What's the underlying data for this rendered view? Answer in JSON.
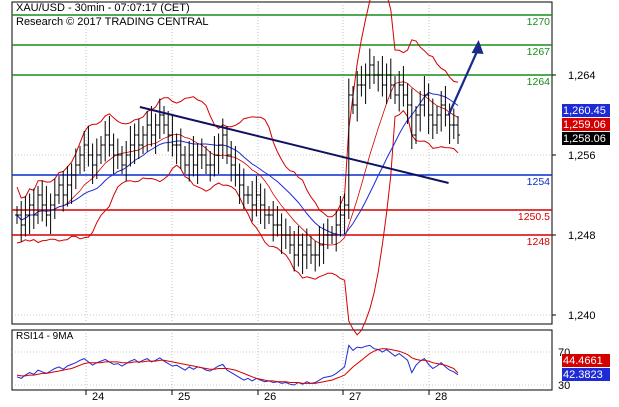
{
  "header": {
    "line1": "XAU/USD - 30min - 07:07:17 (CET)",
    "line2": "Research © 2017 TRADING CENTRAL"
  },
  "chart_data": [
    {
      "type": "candlestick",
      "symbol": "XAU/USD",
      "timeframe": "30min",
      "x_ticks": [
        "24",
        "25",
        "26",
        "27",
        "28"
      ],
      "y_ticks": [
        1240,
        1248,
        1256,
        1264
      ],
      "ylim": [
        1236,
        1276
      ],
      "grid": true,
      "colors": {
        "price": "#000000",
        "bollinger": "#d40000",
        "moving_average": "#1d2bd6",
        "support": "#d40000",
        "resistance": "#1a8c1a",
        "pivot": "#0a2ecc",
        "trendline": "#101060",
        "arrow": "#1a2a8a"
      },
      "levels": [
        {
          "label": "1270",
          "value": 1270,
          "role": "resistance"
        },
        {
          "label": "1267",
          "value": 1267,
          "role": "resistance"
        },
        {
          "label": "1264",
          "value": 1264,
          "role": "resistance"
        },
        {
          "label": "1254",
          "value": 1254,
          "role": "pivot"
        },
        {
          "label": "1250.5",
          "value": 1250.5,
          "role": "support"
        },
        {
          "label": "1248",
          "value": 1248,
          "role": "support"
        }
      ],
      "price_badges": [
        {
          "label": "1,260.45",
          "value": 1260.45,
          "color": "#1d2bd6"
        },
        {
          "label": "1,259.06",
          "value": 1259.06,
          "color": "#d40000"
        },
        {
          "label": "1,258.06",
          "value": 1258.06,
          "color": "#000000"
        }
      ],
      "close": [
        1250,
        1249,
        1250,
        1251,
        1250,
        1252,
        1251,
        1250,
        1251,
        1252,
        1253,
        1252,
        1253,
        1254,
        1255,
        1256,
        1257,
        1256,
        1255,
        1256,
        1257,
        1258,
        1257,
        1256,
        1256,
        1255,
        1256,
        1257,
        1258,
        1257,
        1258,
        1259,
        1258,
        1259,
        1260,
        1259,
        1258,
        1257,
        1257,
        1256,
        1255,
        1256,
        1255,
        1256,
        1256,
        1255,
        1255,
        1256,
        1257,
        1258,
        1256,
        1255,
        1254,
        1253,
        1252,
        1252,
        1251,
        1252,
        1251,
        1250,
        1250,
        1249,
        1249,
        1248,
        1248,
        1247,
        1246,
        1247,
        1246,
        1247,
        1246,
        1246,
        1247,
        1248,
        1248,
        1248,
        1249,
        1250,
        1251,
        1262,
        1261,
        1263,
        1263,
        1264,
        1265,
        1264,
        1264,
        1263,
        1264,
        1263,
        1262,
        1263,
        1262,
        1261,
        1258,
        1260,
        1261,
        1262,
        1260,
        1259,
        1260,
        1261,
        1260,
        1259,
        1259,
        1258
      ],
      "trendline": {
        "from": [
          24.5,
          1260.8
        ],
        "to": [
          28.1,
          1253.2
        ]
      },
      "projection_arrow": {
        "from": [
          28.1,
          1260
        ],
        "to": [
          28.45,
          1267.5
        ]
      }
    },
    {
      "type": "line",
      "title": "RSI14 - 9MA",
      "y_ticks": [
        30,
        70
      ],
      "series": [
        {
          "name": "RSI14",
          "label": "42.3823",
          "last": 42.3823,
          "color": "#1d2bd6",
          "values": [
            40,
            38,
            42,
            45,
            43,
            48,
            46,
            44,
            47,
            50,
            52,
            49,
            53,
            55,
            57,
            60,
            62,
            58,
            54,
            57,
            59,
            61,
            58,
            55,
            56,
            53,
            56,
            59,
            61,
            57,
            60,
            62,
            58,
            60,
            63,
            59,
            56,
            53,
            54,
            51,
            48,
            52,
            49,
            52,
            51,
            48,
            47,
            50,
            53,
            55,
            48,
            45,
            42,
            39,
            36,
            38,
            35,
            38,
            36,
            34,
            35,
            33,
            34,
            32,
            33,
            31,
            30,
            33,
            31,
            34,
            32,
            33,
            36,
            39,
            40,
            41,
            44,
            48,
            52,
            78,
            72,
            76,
            75,
            77,
            78,
            74,
            73,
            70,
            73,
            69,
            65,
            68,
            64,
            60,
            45,
            54,
            59,
            62,
            55,
            50,
            53,
            57,
            52,
            48,
            46,
            42.3823
          ]
        },
        {
          "name": "9MA",
          "label": "44.4661",
          "last": 44.4661,
          "color": "#d40000",
          "values": [
            42,
            41,
            41,
            42,
            42,
            43,
            44,
            44,
            45,
            46,
            47,
            48,
            49,
            50,
            52,
            54,
            56,
            57,
            57,
            57,
            57,
            58,
            58,
            58,
            58,
            57,
            57,
            57,
            58,
            58,
            58,
            59,
            59,
            59,
            60,
            60,
            59,
            58,
            57,
            56,
            55,
            54,
            53,
            52,
            51,
            50,
            49,
            49,
            50,
            50,
            50,
            49,
            48,
            46,
            44,
            42,
            40,
            38,
            37,
            36,
            35,
            35,
            34,
            34,
            34,
            33,
            33,
            33,
            32,
            32,
            32,
            32,
            33,
            34,
            35,
            36,
            38,
            40,
            42,
            47,
            52,
            56,
            60,
            64,
            68,
            71,
            73,
            74,
            74,
            73,
            72,
            71,
            69,
            67,
            63,
            61,
            60,
            60,
            59,
            57,
            56,
            55,
            54,
            52,
            50,
            44.4661
          ]
        }
      ]
    }
  ]
}
